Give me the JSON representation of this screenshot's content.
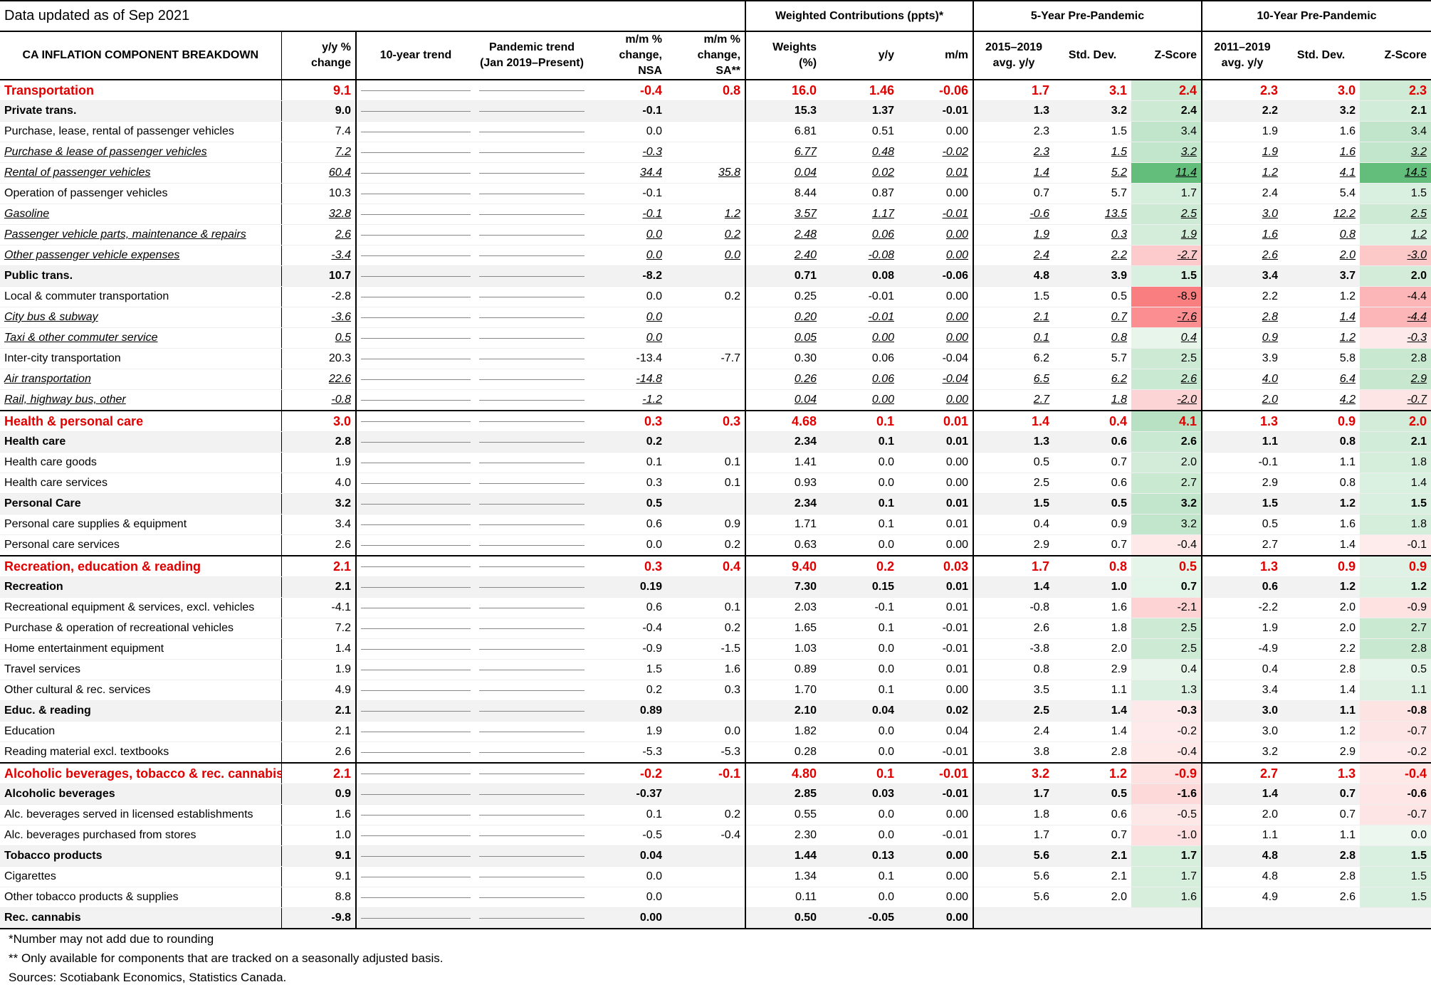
{
  "header": {
    "updated": "Data updated as of Sep 2021",
    "groups": [
      "Weighted Contributions (ppts)*",
      "5-Year Pre-Pandemic",
      "10-Year Pre-Pandemic"
    ],
    "columns": [
      "CA INFLATION COMPONENT BREAKDOWN",
      "y/y %\nchange",
      "10-year trend",
      "Pandemic trend\n(Jan 2019–Present)",
      "m/m %\nchange, NSA",
      "m/m %\nchange, SA**",
      "Weights\n(%)",
      "y/y",
      "m/m",
      "2015–2019\navg. y/y",
      "Std. Dev.",
      "Z-Score",
      "2011–2019\navg. y/y",
      "Std. Dev.",
      "Z-Score"
    ]
  },
  "table": {
    "rows": [
      {
        "label": "Transportation",
        "style": "category",
        "cells": [
          "9.1",
          "-0.4",
          "0.8",
          "16.0",
          "1.46",
          "-0.06",
          "1.7",
          "3.1",
          "2.4",
          "2.3",
          "3.0",
          "2.3"
        ]
      },
      {
        "label": "Private trans.",
        "style": "bold",
        "cells": [
          "9.0",
          "-0.1",
          null,
          "15.3",
          "1.37",
          "-0.01",
          "1.3",
          "3.2",
          "2.4",
          "2.2",
          "3.2",
          "2.1"
        ]
      },
      {
        "label": "Purchase, lease, rental of passenger vehicles",
        "style": "plain",
        "cells": [
          "7.4",
          "0.0",
          null,
          "6.81",
          "0.51",
          "0.00",
          "2.3",
          "1.5",
          "3.4",
          "1.9",
          "1.6",
          "3.4"
        ]
      },
      {
        "label": "Purchase & lease of passenger vehicles",
        "style": "italic",
        "cells": [
          "7.2",
          "-0.3",
          null,
          "6.77",
          "0.48",
          "-0.02",
          "2.3",
          "1.5",
          "3.2",
          "1.9",
          "1.6",
          "3.2"
        ]
      },
      {
        "label": "Rental of passenger vehicles",
        "style": "italic",
        "cells": [
          "60.4",
          "34.4",
          "35.8",
          "0.04",
          "0.02",
          "0.01",
          "1.4",
          "5.2",
          "11.4",
          "1.2",
          "4.1",
          "14.5"
        ]
      },
      {
        "label": "Operation of passenger vehicles",
        "style": "plain",
        "cells": [
          "10.3",
          "-0.1",
          null,
          "8.44",
          "0.87",
          "0.00",
          "0.7",
          "5.7",
          "1.7",
          "2.4",
          "5.4",
          "1.5"
        ]
      },
      {
        "label": "Gasoline",
        "style": "italic",
        "cells": [
          "32.8",
          "-0.1",
          "1.2",
          "3.57",
          "1.17",
          "-0.01",
          "-0.6",
          "13.5",
          "2.5",
          "3.0",
          "12.2",
          "2.5"
        ]
      },
      {
        "label": "Passenger vehicle parts, maintenance & repairs",
        "style": "italic",
        "cells": [
          "2.6",
          "0.0",
          "0.2",
          "2.48",
          "0.06",
          "0.00",
          "1.9",
          "0.3",
          "1.9",
          "1.6",
          "0.8",
          "1.2"
        ]
      },
      {
        "label": "Other passenger vehicle expenses",
        "style": "italic",
        "cells": [
          "-3.4",
          "0.0",
          "0.0",
          "2.40",
          "-0.08",
          "0.00",
          "2.4",
          "2.2",
          "-2.7",
          "2.6",
          "2.0",
          "-3.0"
        ]
      },
      {
        "label": "Public trans.",
        "style": "bold",
        "cells": [
          "10.7",
          "-8.2",
          null,
          "0.71",
          "0.08",
          "-0.06",
          "4.8",
          "3.9",
          "1.5",
          "3.4",
          "3.7",
          "2.0"
        ]
      },
      {
        "label": "Local & commuter transportation",
        "style": "plain",
        "cells": [
          "-2.8",
          "0.0",
          "0.2",
          "0.25",
          "-0.01",
          "0.00",
          "1.5",
          "0.5",
          "-8.9",
          "2.2",
          "1.2",
          "-4.4"
        ]
      },
      {
        "label": "City bus & subway",
        "style": "italic",
        "cells": [
          "-3.6",
          "0.0",
          null,
          "0.20",
          "-0.01",
          "0.00",
          "2.1",
          "0.7",
          "-7.6",
          "2.8",
          "1.4",
          "-4.4"
        ]
      },
      {
        "label": "Taxi & other commuter service",
        "style": "italic",
        "cells": [
          "0.5",
          "0.0",
          null,
          "0.05",
          "0.00",
          "0.00",
          "0.1",
          "0.8",
          "0.4",
          "0.9",
          "1.2",
          "-0.3"
        ]
      },
      {
        "label": "Inter-city transportation",
        "style": "plain",
        "cells": [
          "20.3",
          "-13.4",
          "-7.7",
          "0.30",
          "0.06",
          "-0.04",
          "6.2",
          "5.7",
          "2.5",
          "3.9",
          "5.8",
          "2.8"
        ]
      },
      {
        "label": "Air transportation",
        "style": "italic",
        "cells": [
          "22.6",
          "-14.8",
          null,
          "0.26",
          "0.06",
          "-0.04",
          "6.5",
          "6.2",
          "2.6",
          "4.0",
          "6.4",
          "2.9"
        ]
      },
      {
        "label": "Rail, highway bus, other",
        "style": "italic",
        "cells": [
          "-0.8",
          "-1.2",
          null,
          "0.04",
          "0.00",
          "0.00",
          "2.7",
          "1.8",
          "-2.0",
          "2.0",
          "4.2",
          "-0.7"
        ]
      },
      {
        "label": "Health & personal care",
        "style": "category",
        "cells": [
          "3.0",
          "0.3",
          "0.3",
          "4.68",
          "0.1",
          "0.01",
          "1.4",
          "0.4",
          "4.1",
          "1.3",
          "0.9",
          "2.0"
        ]
      },
      {
        "label": "Health care",
        "style": "bold",
        "cells": [
          "2.8",
          "0.2",
          null,
          "2.34",
          "0.1",
          "0.01",
          "1.3",
          "0.6",
          "2.6",
          "1.1",
          "0.8",
          "2.1"
        ]
      },
      {
        "label": "Health care goods",
        "style": "plain",
        "cells": [
          "1.9",
          "0.1",
          "0.1",
          "1.41",
          "0.0",
          "0.00",
          "0.5",
          "0.7",
          "2.0",
          "-0.1",
          "1.1",
          "1.8"
        ]
      },
      {
        "label": "Health care services",
        "style": "plain",
        "cells": [
          "4.0",
          "0.3",
          "0.1",
          "0.93",
          "0.0",
          "0.00",
          "2.5",
          "0.6",
          "2.7",
          "2.9",
          "0.8",
          "1.4"
        ]
      },
      {
        "label": "Personal Care",
        "style": "bold",
        "cells": [
          "3.2",
          "0.5",
          null,
          "2.34",
          "0.1",
          "0.01",
          "1.5",
          "0.5",
          "3.2",
          "1.5",
          "1.2",
          "1.5"
        ]
      },
      {
        "label": "Personal care supplies & equipment",
        "style": "plain",
        "cells": [
          "3.4",
          "0.6",
          "0.9",
          "1.71",
          "0.1",
          "0.01",
          "0.4",
          "0.9",
          "3.2",
          "0.5",
          "1.6",
          "1.8"
        ]
      },
      {
        "label": "Personal care services",
        "style": "plain",
        "cells": [
          "2.6",
          "0.0",
          "0.2",
          "0.63",
          "0.0",
          "0.00",
          "2.9",
          "0.7",
          "-0.4",
          "2.7",
          "1.4",
          "-0.1"
        ]
      },
      {
        "label": "Recreation, education & reading",
        "style": "category",
        "cells": [
          "2.1",
          "0.3",
          "0.4",
          "9.40",
          "0.2",
          "0.03",
          "1.7",
          "0.8",
          "0.5",
          "1.3",
          "0.9",
          "0.9"
        ]
      },
      {
        "label": "Recreation",
        "style": "bold",
        "cells": [
          "2.1",
          "0.19",
          null,
          "7.30",
          "0.15",
          "0.01",
          "1.4",
          "1.0",
          "0.7",
          "0.6",
          "1.2",
          "1.2"
        ]
      },
      {
        "label": "Recreational equipment & services, excl. vehicles",
        "style": "plain",
        "cells": [
          "-4.1",
          "0.6",
          "0.1",
          "2.03",
          "-0.1",
          "0.01",
          "-0.8",
          "1.6",
          "-2.1",
          "-2.2",
          "2.0",
          "-0.9"
        ]
      },
      {
        "label": "Purchase & operation of recreational vehicles",
        "style": "plain",
        "cells": [
          "7.2",
          "-0.4",
          "0.2",
          "1.65",
          "0.1",
          "-0.01",
          "2.6",
          "1.8",
          "2.5",
          "1.9",
          "2.0",
          "2.7"
        ]
      },
      {
        "label": "Home entertainment equipment",
        "style": "plain",
        "cells": [
          "1.4",
          "-0.9",
          "-1.5",
          "1.03",
          "0.0",
          "-0.01",
          "-3.8",
          "2.0",
          "2.5",
          "-4.9",
          "2.2",
          "2.8"
        ]
      },
      {
        "label": "Travel services",
        "style": "plain",
        "cells": [
          "1.9",
          "1.5",
          "1.6",
          "0.89",
          "0.0",
          "0.01",
          "0.8",
          "2.9",
          "0.4",
          "0.4",
          "2.8",
          "0.5"
        ]
      },
      {
        "label": "Other cultural & rec. services",
        "style": "plain",
        "cells": [
          "4.9",
          "0.2",
          "0.3",
          "1.70",
          "0.1",
          "0.00",
          "3.5",
          "1.1",
          "1.3",
          "3.4",
          "1.4",
          "1.1"
        ]
      },
      {
        "label": "Educ. & reading",
        "style": "bold",
        "cells": [
          "2.1",
          "0.89",
          null,
          "2.10",
          "0.04",
          "0.02",
          "2.5",
          "1.4",
          "-0.3",
          "3.0",
          "1.1",
          "-0.8"
        ]
      },
      {
        "label": "Education",
        "style": "plain",
        "cells": [
          "2.1",
          "1.9",
          "0.0",
          "1.82",
          "0.0",
          "0.04",
          "2.4",
          "1.4",
          "-0.2",
          "3.0",
          "1.2",
          "-0.7"
        ]
      },
      {
        "label": "Reading material excl. textbooks",
        "style": "plain",
        "cells": [
          "2.6",
          "-5.3",
          "-5.3",
          "0.28",
          "0.0",
          "-0.01",
          "3.8",
          "2.8",
          "-0.4",
          "3.2",
          "2.9",
          "-0.2"
        ]
      },
      {
        "label": "Alcoholic beverages, tobacco & rec. cannabis",
        "style": "category",
        "cells": [
          "2.1",
          "-0.2",
          "-0.1",
          "4.80",
          "0.1",
          "-0.01",
          "3.2",
          "1.2",
          "-0.9",
          "2.7",
          "1.3",
          "-0.4"
        ]
      },
      {
        "label": "Alcoholic beverages",
        "style": "bold",
        "cells": [
          "0.9",
          "-0.37",
          null,
          "2.85",
          "0.03",
          "-0.01",
          "1.7",
          "0.5",
          "-1.6",
          "1.4",
          "0.7",
          "-0.6"
        ]
      },
      {
        "label": "Alc. beverages served in licensed establishments",
        "style": "plain",
        "cells": [
          "1.6",
          "0.1",
          "0.2",
          "0.55",
          "0.0",
          "0.00",
          "1.8",
          "0.6",
          "-0.5",
          "2.0",
          "0.7",
          "-0.7"
        ]
      },
      {
        "label": "Alc. beverages purchased from stores",
        "style": "plain",
        "cells": [
          "1.0",
          "-0.5",
          "-0.4",
          "2.30",
          "0.0",
          "-0.01",
          "1.7",
          "0.7",
          "-1.0",
          "1.1",
          "1.1",
          "0.0"
        ]
      },
      {
        "label": "Tobacco products",
        "style": "bold",
        "cells": [
          "9.1",
          "0.04",
          null,
          "1.44",
          "0.13",
          "0.00",
          "5.6",
          "2.1",
          "1.7",
          "4.8",
          "2.8",
          "1.5"
        ]
      },
      {
        "label": "Cigarettes",
        "style": "plain",
        "cells": [
          "9.1",
          "0.0",
          null,
          "1.34",
          "0.1",
          "0.00",
          "5.6",
          "2.1",
          "1.7",
          "4.8",
          "2.8",
          "1.5"
        ]
      },
      {
        "label": "Other tobacco products & supplies",
        "style": "plain",
        "cells": [
          "8.8",
          "0.0",
          null,
          "0.11",
          "0.0",
          "0.00",
          "5.6",
          "2.0",
          "1.6",
          "4.9",
          "2.6",
          "1.5"
        ]
      },
      {
        "label": "Rec. cannabis",
        "style": "bold",
        "cells": [
          "-9.8",
          "0.00",
          null,
          "0.50",
          "-0.05",
          "0.00",
          null,
          null,
          null,
          null,
          null,
          null
        ]
      }
    ]
  },
  "footnotes": [
    "*Number may not add due to rounding",
    "** Only available for components that are tracked on a seasonally adjusted basis.",
    "Sources: Scotiabank Economics, Statistics Canada."
  ]
}
